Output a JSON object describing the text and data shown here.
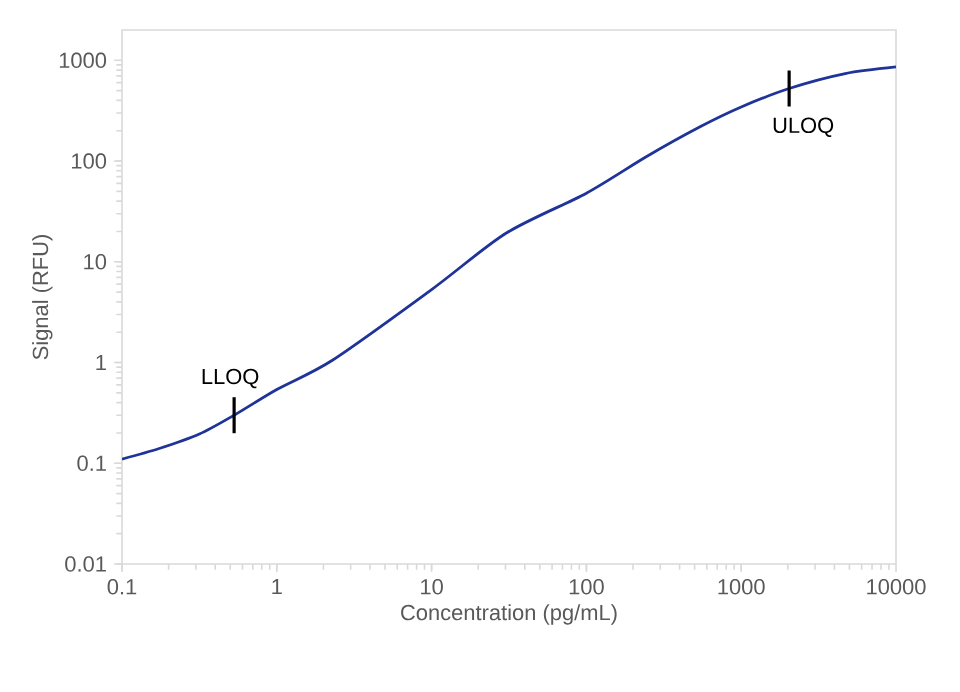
{
  "chart_data": {
    "type": "line",
    "xlabel": "Concentration (pg/mL)",
    "ylabel": "Signal (RFU)",
    "log": "xy",
    "x": [
      0.1,
      0.174,
      0.316,
      0.53,
      1,
      2.3,
      10,
      30.4,
      100,
      245,
      546,
      1000,
      2040,
      4700,
      10000
    ],
    "series": [
      {
        "color": "#1f3399",
        "values": [
          0.11,
          0.14,
          0.195,
          0.3,
          0.54,
          1.06,
          5.3,
          19.3,
          48,
          111,
          220,
          344,
          525,
          738,
          859
        ]
      }
    ],
    "xlim": [
      0.1,
      10000
    ],
    "ylim": [
      0.01,
      2000
    ],
    "xticks": [
      0.1,
      1,
      10,
      100,
      1000,
      10000
    ],
    "yticks": [
      0.01,
      0.1,
      1,
      10,
      100,
      1000
    ],
    "grid": false,
    "marker": "none",
    "line_style": "solid",
    "annotations": [
      {
        "text": "LLOQ",
        "x": 0.53,
        "y": 0.3
      },
      {
        "text": "ULOQ",
        "x": 2040,
        "y": 525
      }
    ]
  }
}
